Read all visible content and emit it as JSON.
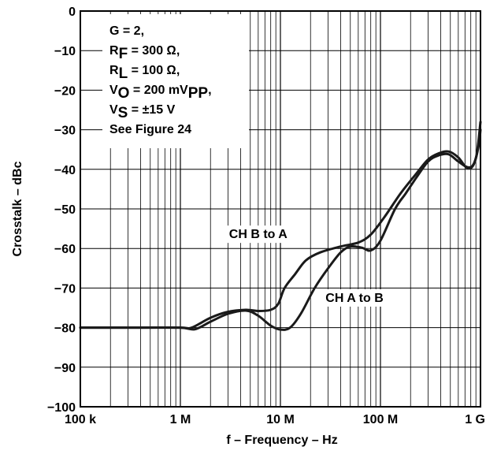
{
  "chart_data": {
    "type": "line",
    "title": "",
    "xlabel": "f – Frequency – Hz",
    "ylabel": "Crosstalk – dBc",
    "x_scale": "log",
    "xlim": [
      100000,
      1000000000
    ],
    "ylim": [
      -100,
      0
    ],
    "grid": true,
    "x_ticks": [
      {
        "value": 100000,
        "label": "100 k"
      },
      {
        "value": 1000000,
        "label": "1 M"
      },
      {
        "value": 10000000,
        "label": "10 M"
      },
      {
        "value": 100000000,
        "label": "100 M"
      },
      {
        "value": 1000000000,
        "label": "1 G"
      }
    ],
    "y_ticks": [
      {
        "value": 0,
        "label": "0"
      },
      {
        "value": -10,
        "label": "−10"
      },
      {
        "value": -20,
        "label": "−20"
      },
      {
        "value": -30,
        "label": "−30"
      },
      {
        "value": -40,
        "label": "−40"
      },
      {
        "value": -50,
        "label": "−50"
      },
      {
        "value": -60,
        "label": "−60"
      },
      {
        "value": -70,
        "label": "−70"
      },
      {
        "value": -80,
        "label": "−80"
      },
      {
        "value": -90,
        "label": "−90"
      },
      {
        "value": -100,
        "label": "−100"
      }
    ],
    "conditions": [
      {
        "main": "G = 2,",
        "sub": "",
        "rest": ""
      },
      {
        "main": "R",
        "sub": "F",
        "rest": " = 300 Ω,"
      },
      {
        "main": "R",
        "sub": "L",
        "rest": " = 100 Ω,"
      },
      {
        "main": "V",
        "sub": "O",
        "rest": " = 200 mV",
        "sub2": "PP",
        "rest2": ","
      },
      {
        "main": "V",
        "sub": "S",
        "rest": " = ±15 V"
      },
      {
        "main": "See Figure 24",
        "sub": "",
        "rest": ""
      }
    ],
    "series": [
      {
        "name": "CH B to A",
        "label_at": {
          "x": 6000000,
          "y": -57.4
        },
        "points": [
          [
            100000,
            -80
          ],
          [
            400000,
            -80
          ],
          [
            1000000,
            -80
          ],
          [
            1300000,
            -80
          ],
          [
            2000000,
            -77.5
          ],
          [
            3000000,
            -76
          ],
          [
            4500000,
            -75.5
          ],
          [
            6000000,
            -75.8
          ],
          [
            8000000,
            -75.5
          ],
          [
            9500000,
            -74
          ],
          [
            11000000,
            -70
          ],
          [
            14000000,
            -66.5
          ],
          [
            18000000,
            -63
          ],
          [
            25000000,
            -61
          ],
          [
            40000000,
            -59.5
          ],
          [
            60000000,
            -58.5
          ],
          [
            80000000,
            -56.5
          ],
          [
            110000000,
            -52
          ],
          [
            160000000,
            -46
          ],
          [
            230000000,
            -41
          ],
          [
            300000000,
            -37.5
          ],
          [
            380000000,
            -36
          ],
          [
            480000000,
            -35.5
          ],
          [
            600000000,
            -37
          ],
          [
            720000000,
            -39.5
          ],
          [
            830000000,
            -39.3
          ],
          [
            920000000,
            -36
          ],
          [
            1000000000,
            -28
          ]
        ]
      },
      {
        "name": "CH A to B",
        "label_at": {
          "x": 55000000,
          "y": -73.5
        },
        "points": [
          [
            100000,
            -80
          ],
          [
            400000,
            -80
          ],
          [
            1000000,
            -80
          ],
          [
            1400000,
            -80.4
          ],
          [
            2000000,
            -78.5
          ],
          [
            3000000,
            -76.5
          ],
          [
            4500000,
            -75.7
          ],
          [
            6000000,
            -77
          ],
          [
            8000000,
            -79.5
          ],
          [
            10000000,
            -80.5
          ],
          [
            12500000,
            -80
          ],
          [
            16000000,
            -76.5
          ],
          [
            22000000,
            -70
          ],
          [
            30000000,
            -65
          ],
          [
            40000000,
            -61
          ],
          [
            50000000,
            -59.5
          ],
          [
            65000000,
            -59.8
          ],
          [
            80000000,
            -60.5
          ],
          [
            100000000,
            -58
          ],
          [
            140000000,
            -50
          ],
          [
            180000000,
            -46
          ],
          [
            230000000,
            -42
          ],
          [
            300000000,
            -38
          ],
          [
            380000000,
            -36.5
          ],
          [
            480000000,
            -36.2
          ],
          [
            600000000,
            -38
          ],
          [
            750000000,
            -39.5
          ],
          [
            860000000,
            -38.5
          ],
          [
            960000000,
            -34
          ],
          [
            1000000000,
            -30
          ]
        ]
      }
    ]
  }
}
